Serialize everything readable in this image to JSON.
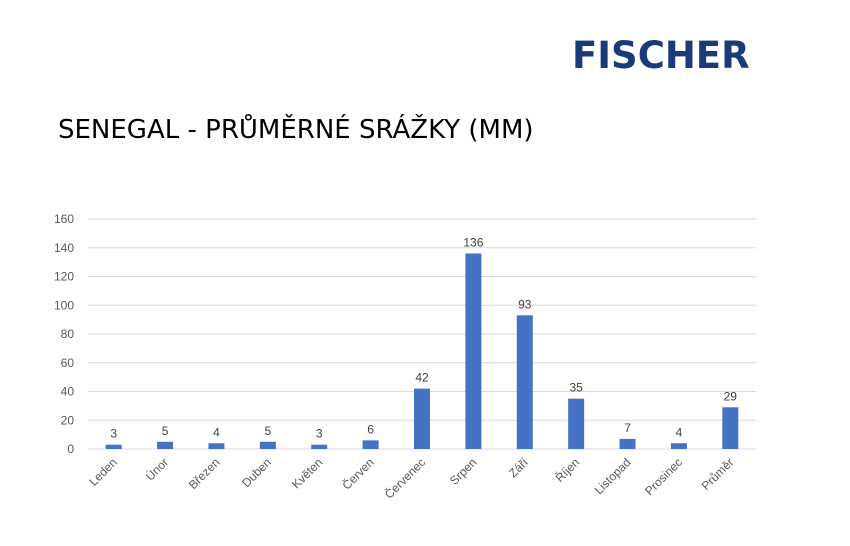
{
  "header": {
    "logo_text": "FISCHER",
    "title": "SENEGAL - PRŮMĚRNÉ SRÁŽKY (MM)"
  },
  "colors": {
    "bar": "#4472c4",
    "logo": "#1a3a7a",
    "grid": "#d9d9d9"
  },
  "chart_data": {
    "type": "bar",
    "title": "SENEGAL - PRŮMĚRNÉ SRÁŽKY (MM)",
    "categories": [
      "Leden",
      "Únor",
      "Březen",
      "Duben",
      "Květen",
      "Červen",
      "Červenec",
      "Srpen",
      "Září",
      "Říjen",
      "Listopad",
      "Prosinec",
      "Průměr"
    ],
    "values": [
      3,
      5,
      4,
      5,
      3,
      6,
      42,
      136,
      93,
      35,
      7,
      4,
      29
    ],
    "ylim": [
      0,
      160
    ],
    "yticks": [
      0,
      20,
      40,
      60,
      80,
      100,
      120,
      140,
      160
    ],
    "grid": true,
    "legend": "none",
    "xlabel": "",
    "ylabel": ""
  }
}
